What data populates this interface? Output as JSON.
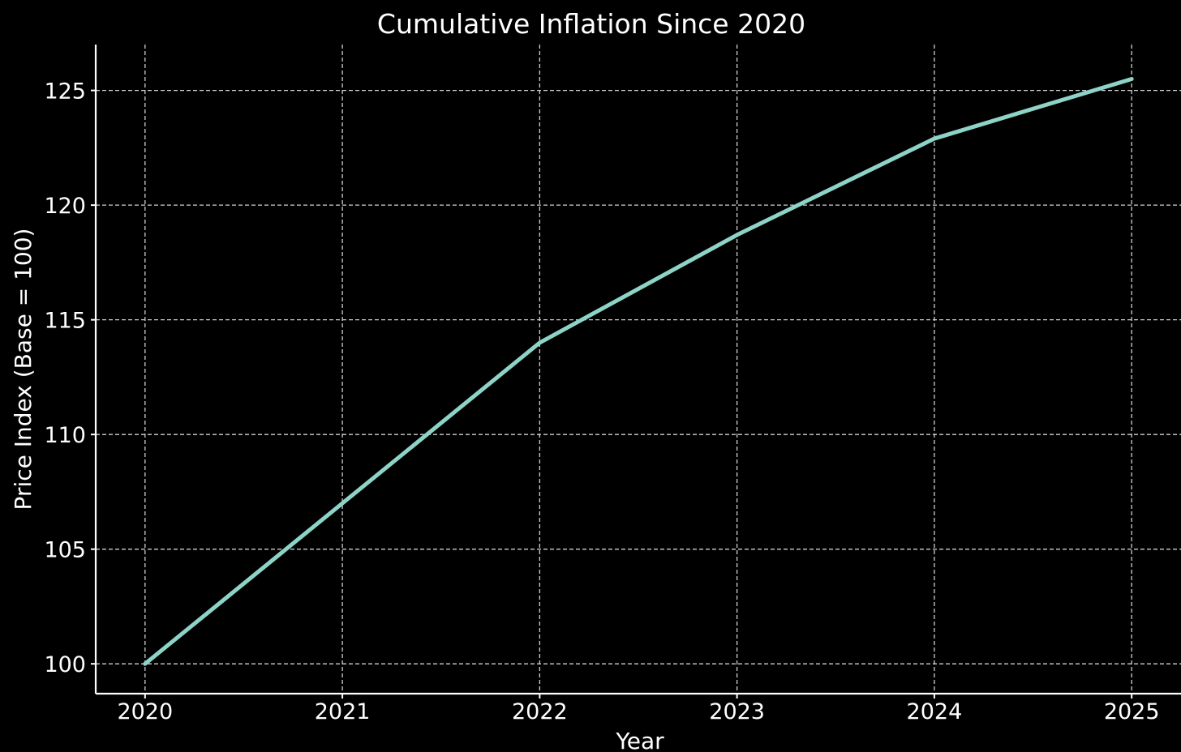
{
  "chart_data": {
    "type": "line",
    "title": "Cumulative Inflation Since 2020",
    "xlabel": "Year",
    "ylabel": "Price Index (Base = 100)",
    "x": [
      2020,
      2021,
      2022,
      2023,
      2024,
      2025
    ],
    "x_tick_labels": [
      "2020",
      "2021",
      "2022",
      "2023",
      "2024",
      "2025"
    ],
    "y_ticks": [
      100,
      105,
      110,
      115,
      120,
      125
    ],
    "y_tick_labels": [
      "100",
      "105",
      "110",
      "115",
      "120",
      "125"
    ],
    "xlim": [
      2019.75,
      2025.25
    ],
    "ylim": [
      98.7,
      127.0
    ],
    "grid": true,
    "series": [
      {
        "values": [
          100.0,
          107.0,
          114.0,
          118.7,
          122.9,
          125.5
        ],
        "color": "#8dd3c7"
      }
    ]
  },
  "colors": {
    "background": "#000000",
    "text": "#ffffff",
    "grid": "#cfcfcf",
    "series": "#8dd3c7"
  }
}
